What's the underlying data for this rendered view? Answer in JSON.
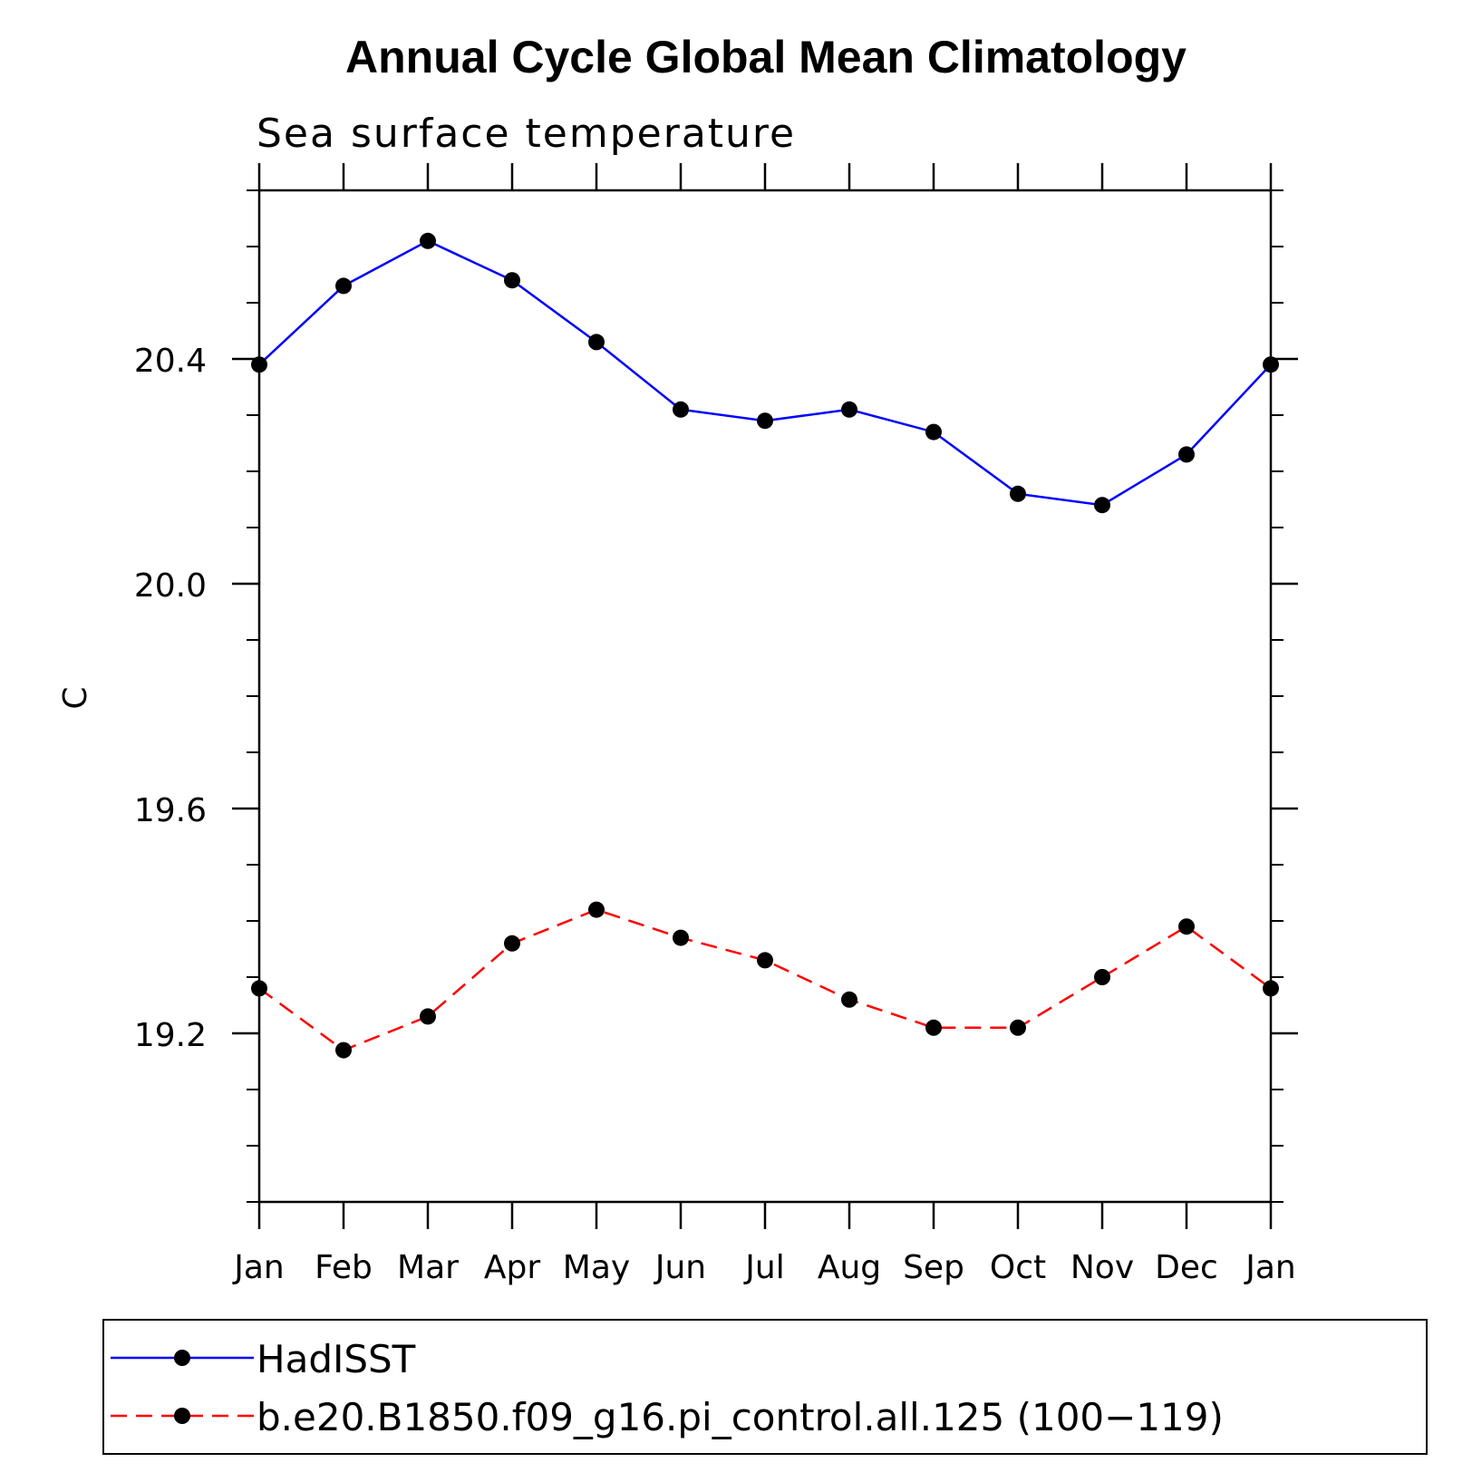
{
  "chart_data": {
    "type": "line",
    "title": "Annual Cycle Global Mean Climatology",
    "subtitle": "Sea surface temperature",
    "xlabel": "",
    "ylabel": "C",
    "categories": [
      "Jan",
      "Feb",
      "Mar",
      "Apr",
      "May",
      "Jun",
      "Jul",
      "Aug",
      "Sep",
      "Oct",
      "Nov",
      "Dec",
      "Jan"
    ],
    "ylim": [
      18.9,
      20.7
    ],
    "yticks": [
      "19.2",
      "19.6",
      "20.0",
      "20.4"
    ],
    "ytick_values": [
      19.2,
      19.6,
      20.0,
      20.4
    ],
    "grid": false,
    "legend_position": "bottom",
    "series": [
      {
        "name": "HadISST",
        "color": "#0000ff",
        "dash": "solid",
        "values": [
          20.39,
          20.53,
          20.61,
          20.54,
          20.43,
          20.31,
          20.29,
          20.31,
          20.27,
          20.16,
          20.14,
          20.23,
          20.39
        ]
      },
      {
        "name": "b.e20.B1850.f09_g16.pi_control.all.125 (100−119)",
        "color": "#ff0000",
        "dash": "dashed",
        "values": [
          19.28,
          19.17,
          19.23,
          19.36,
          19.42,
          19.37,
          19.33,
          19.26,
          19.21,
          19.21,
          19.3,
          19.39,
          19.28
        ]
      }
    ]
  }
}
